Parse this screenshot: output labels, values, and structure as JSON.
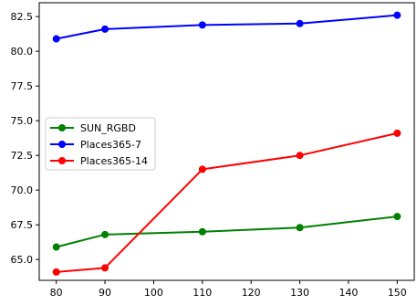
{
  "chart_data": {
    "type": "line",
    "title": "",
    "xlabel": "",
    "ylabel": "",
    "x": [
      80,
      90,
      110,
      130,
      150
    ],
    "xlim": [
      76.5,
      153.5
    ],
    "ylim": [
      63.5,
      83.5
    ],
    "xticks": [
      80,
      90,
      100,
      110,
      120,
      130,
      140,
      150
    ],
    "yticks": [
      65.0,
      67.5,
      70.0,
      72.5,
      75.0,
      77.5,
      80.0,
      82.5
    ],
    "xtick_labels": [
      "80",
      "90",
      "100",
      "110",
      "120",
      "130",
      "140",
      "150"
    ],
    "ytick_labels": [
      "65.0",
      "67.5",
      "70.0",
      "72.5",
      "75.0",
      "77.5",
      "80.0",
      "82.5"
    ],
    "grid": false,
    "legend_position": "center-left",
    "series": [
      {
        "name": "SUN_RGBD",
        "color": "#008000",
        "values": [
          65.9,
          66.8,
          67.0,
          67.3,
          68.1
        ]
      },
      {
        "name": "Places365-7",
        "color": "#0000ff",
        "values": [
          80.9,
          81.6,
          81.9,
          82.0,
          82.6
        ]
      },
      {
        "name": "Places365-14",
        "color": "#ff0000",
        "values": [
          64.1,
          64.4,
          71.5,
          72.5,
          74.1
        ]
      }
    ]
  }
}
